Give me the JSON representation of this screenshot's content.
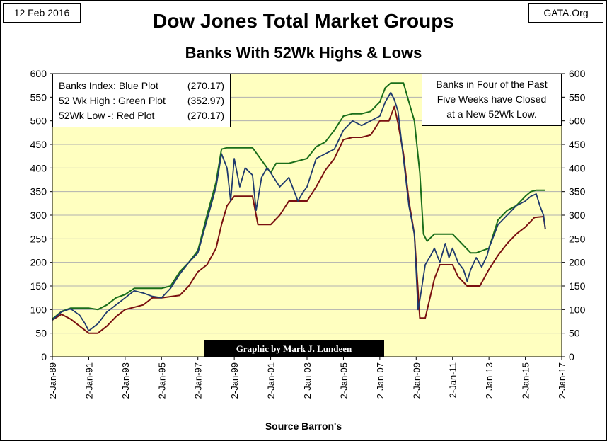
{
  "header": {
    "date": "12 Feb 2016",
    "source_tag": "GATA.Org",
    "title": "Dow Jones Total Market Groups",
    "subtitle": "Banks With 52Wk Highs & Lows"
  },
  "legend": [
    {
      "label": "Banks Index: Blue Plot",
      "value": "(270.17)",
      "color": "#1f3a6e"
    },
    {
      "label": "52 Wk High : Green Plot",
      "value": "(352.97)",
      "color": "#1a6e1a"
    },
    {
      "label": "52Wk Low -: Red Plot",
      "value": "(270.17)",
      "color": "#7a1010"
    }
  ],
  "note": [
    "Banks in Four of the Past",
    "Five Weeks have Closed",
    "at a New 52Wk Low."
  ],
  "credit": "Graphic by Mark J. Lundeen",
  "xlabel": "Source Barron's",
  "chart_data": {
    "type": "line",
    "ylim": [
      0,
      600
    ],
    "yticks": [
      0,
      50,
      100,
      150,
      200,
      250,
      300,
      350,
      400,
      450,
      500,
      550,
      600
    ],
    "ytick_labels": [
      "0",
      "50",
      "100",
      "150",
      "200",
      "250",
      "300",
      "350",
      "400",
      "450",
      "500",
      "550",
      "600"
    ],
    "xlim": [
      1989.0,
      2017.0
    ],
    "xticks": [
      1989,
      1991,
      1993,
      1995,
      1997,
      1999,
      2001,
      2003,
      2005,
      2007,
      2009,
      2011,
      2013,
      2015,
      2017
    ],
    "xtick_labels": [
      "2-Jan-89",
      "2-Jan-91",
      "2-Jan-93",
      "2-Jan-95",
      "2-Jan-97",
      "2-Jan-99",
      "2-Jan-01",
      "2-Jan-03",
      "2-Jan-05",
      "2-Jan-07",
      "2-Jan-09",
      "2-Jan-11",
      "2-Jan-13",
      "2-Jan-15",
      "2-Jan-17"
    ],
    "background": "#ffffc0",
    "grid": true,
    "series": [
      {
        "name": "Banks Index",
        "color": "#1f3a6e",
        "x": [
          1989.0,
          1989.5,
          1990.0,
          1990.5,
          1990.8,
          1991.0,
          1991.5,
          1992.0,
          1992.5,
          1993.0,
          1993.5,
          1994.0,
          1994.5,
          1995.0,
          1995.5,
          1996.0,
          1996.5,
          1997.0,
          1997.5,
          1998.0,
          1998.3,
          1998.6,
          1998.8,
          1999.0,
          1999.3,
          1999.6,
          2000.0,
          2000.2,
          2000.5,
          2000.8,
          2001.0,
          2001.5,
          2002.0,
          2002.5,
          2002.8,
          2003.0,
          2003.5,
          2004.0,
          2004.5,
          2005.0,
          2005.5,
          2006.0,
          2006.5,
          2007.0,
          2007.3,
          2007.6,
          2007.8,
          2008.0,
          2008.3,
          2008.6,
          2008.9,
          2009.1,
          2009.2,
          2009.5,
          2009.8,
          2010.0,
          2010.3,
          2010.6,
          2010.8,
          2011.0,
          2011.3,
          2011.6,
          2011.8,
          2012.0,
          2012.3,
          2012.6,
          2012.9,
          2013.0,
          2013.5,
          2014.0,
          2014.5,
          2015.0,
          2015.3,
          2015.6,
          2015.8,
          2016.0,
          2016.1
        ],
        "values": [
          78,
          95,
          102,
          88,
          70,
          55,
          70,
          95,
          110,
          125,
          140,
          135,
          128,
          125,
          145,
          175,
          200,
          220,
          290,
          360,
          430,
          400,
          330,
          420,
          360,
          400,
          385,
          310,
          380,
          400,
          390,
          360,
          380,
          330,
          350,
          360,
          420,
          430,
          440,
          480,
          500,
          490,
          500,
          510,
          540,
          560,
          545,
          520,
          420,
          320,
          260,
          100,
          120,
          195,
          215,
          230,
          200,
          240,
          210,
          230,
          200,
          185,
          160,
          185,
          210,
          190,
          215,
          230,
          280,
          300,
          320,
          330,
          340,
          345,
          320,
          300,
          270
        ]
      },
      {
        "name": "52 Wk High",
        "color": "#1a6e1a",
        "x": [
          1989.0,
          1989.5,
          1990.0,
          1990.5,
          1991.0,
          1991.5,
          1992.0,
          1992.5,
          1993.0,
          1993.5,
          1994.0,
          1994.5,
          1995.0,
          1995.5,
          1996.0,
          1996.5,
          1997.0,
          1997.5,
          1998.0,
          1998.3,
          1998.6,
          1999.0,
          2000.0,
          2001.0,
          2001.3,
          2002.0,
          2003.0,
          2003.5,
          2004.0,
          2004.5,
          2005.0,
          2005.5,
          2006.0,
          2006.5,
          2007.0,
          2007.3,
          2007.6,
          2008.0,
          2008.3,
          2008.6,
          2008.9,
          2009.2,
          2009.4,
          2009.6,
          2010.0,
          2010.3,
          2011.0,
          2011.5,
          2012.0,
          2012.3,
          2013.0,
          2013.5,
          2014.0,
          2014.5,
          2015.0,
          2015.3,
          2015.6,
          2016.1
        ],
        "values": [
          80,
          96,
          103,
          103,
          103,
          100,
          110,
          125,
          132,
          145,
          145,
          145,
          145,
          150,
          180,
          200,
          225,
          300,
          370,
          440,
          443,
          443,
          443,
          390,
          410,
          410,
          420,
          445,
          455,
          480,
          510,
          515,
          515,
          520,
          540,
          570,
          580,
          580,
          580,
          540,
          500,
          390,
          260,
          245,
          260,
          260,
          260,
          240,
          220,
          220,
          230,
          290,
          310,
          320,
          340,
          350,
          353,
          353
        ]
      },
      {
        "name": "52Wk Low",
        "color": "#7a1010",
        "x": [
          1989.0,
          1989.5,
          1990.0,
          1990.5,
          1991.0,
          1991.5,
          1992.0,
          1992.5,
          1993.0,
          1994.0,
          1994.5,
          1995.0,
          1996.0,
          1996.5,
          1997.0,
          1997.5,
          1998.0,
          1998.3,
          1998.6,
          1999.0,
          2000.0,
          2000.3,
          2001.0,
          2001.5,
          2002.0,
          2003.0,
          2003.5,
          2004.0,
          2004.5,
          2005.0,
          2005.5,
          2006.0,
          2006.5,
          2007.0,
          2007.5,
          2007.8,
          2008.0,
          2008.3,
          2008.6,
          2008.9,
          2009.2,
          2009.5,
          2010.0,
          2010.3,
          2010.6,
          2011.0,
          2011.3,
          2011.8,
          2012.0,
          2012.5,
          2013.0,
          2013.5,
          2014.0,
          2014.5,
          2015.0,
          2015.5,
          2016.0,
          2016.1
        ],
        "values": [
          78,
          90,
          80,
          65,
          50,
          50,
          65,
          85,
          100,
          110,
          125,
          125,
          130,
          150,
          180,
          195,
          230,
          280,
          320,
          340,
          340,
          280,
          280,
          300,
          330,
          330,
          360,
          395,
          420,
          460,
          465,
          465,
          470,
          500,
          500,
          530,
          495,
          430,
          330,
          260,
          82,
          82,
          165,
          195,
          195,
          195,
          170,
          150,
          150,
          150,
          185,
          215,
          240,
          260,
          275,
          295,
          297,
          270
        ]
      }
    ]
  }
}
